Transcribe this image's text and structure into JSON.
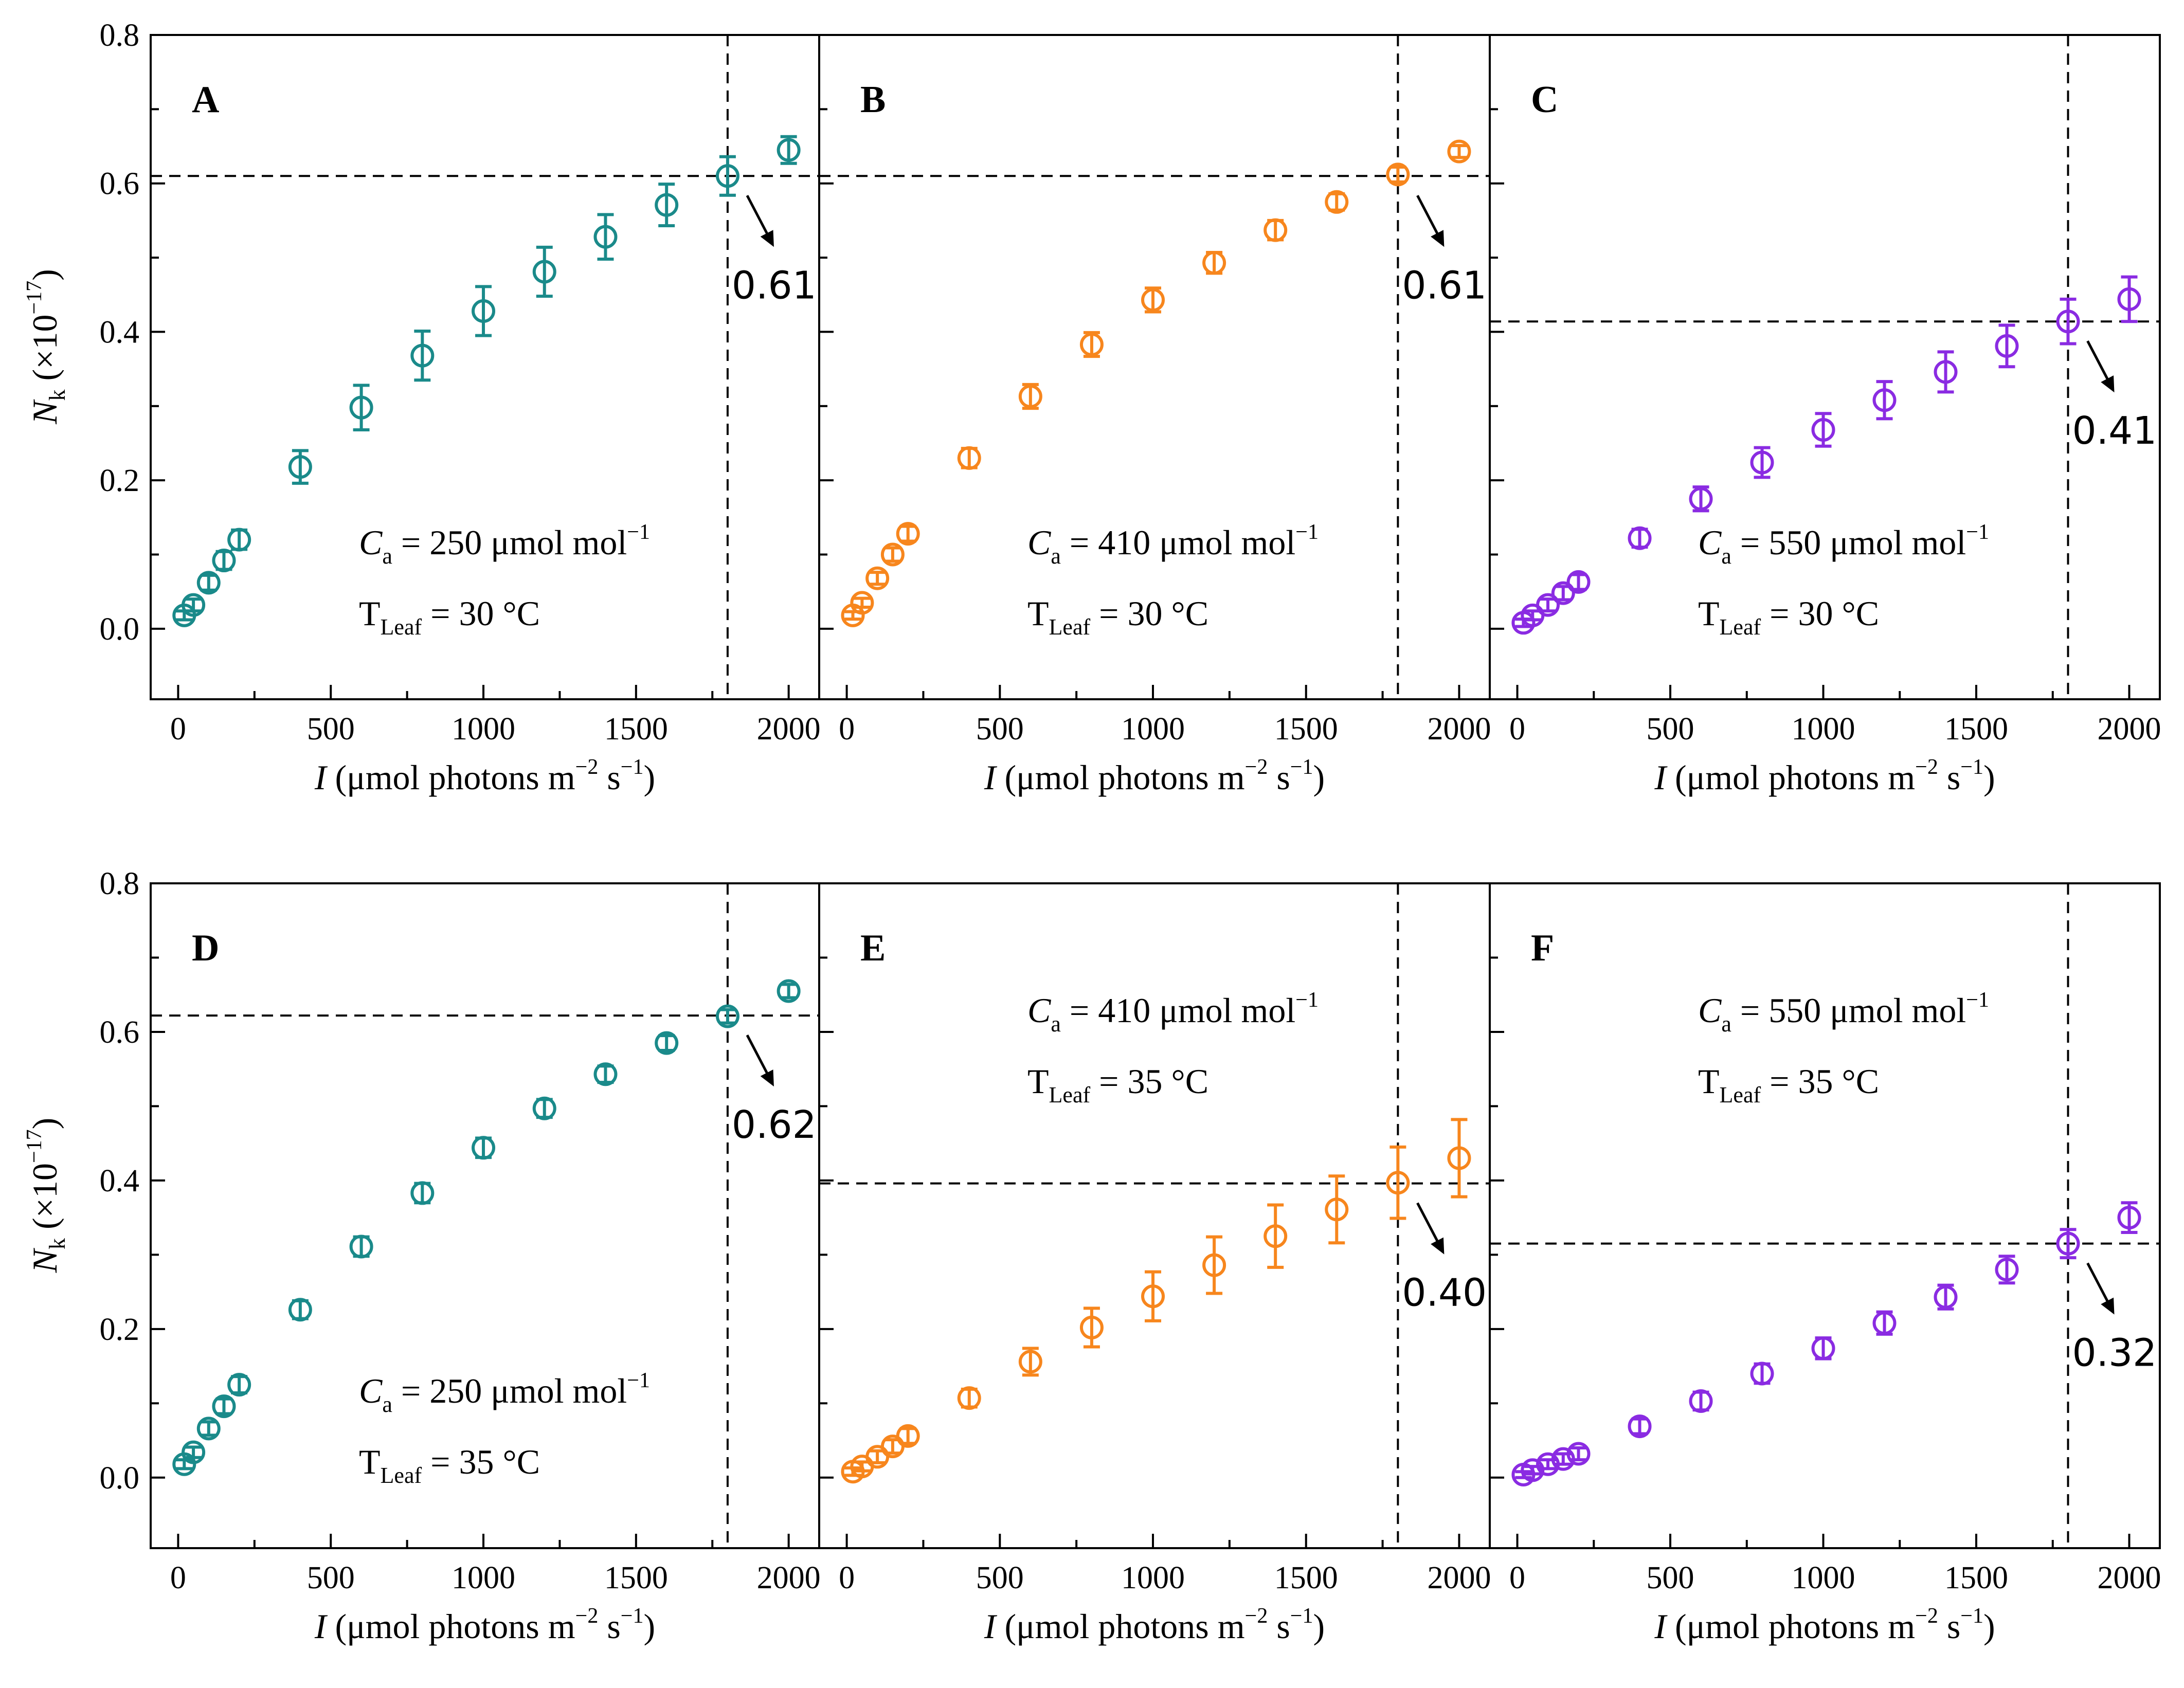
{
  "chart_data": {
    "type": "scatter",
    "xlabel": {
      "italic": "I",
      "text": " (μmol photons m",
      "sup1": "−2",
      "mid": " s",
      "sup2": "−1",
      "end": ")"
    },
    "ylabel": {
      "italic": "N",
      "sub": "k",
      "text": " (×10",
      "sup": "−17",
      "end": ")"
    },
    "x_ticks": [
      0,
      500,
      1000,
      1500,
      2000
    ],
    "y_ticks": [
      0.0,
      0.2,
      0.4,
      0.6,
      0.8
    ],
    "y_tick_labels": [
      "0.0",
      "0.2",
      "0.4",
      "0.6",
      "0.8"
    ],
    "xlim": [
      -90,
      2100
    ],
    "ylim": [
      -0.095,
      0.8
    ],
    "x": [
      20,
      50,
      100,
      150,
      200,
      400,
      600,
      800,
      1000,
      1200,
      1400,
      1600,
      1800,
      2000
    ],
    "marker": "open-circle-with-error-bars",
    "colors": {
      "250": "#1a8a8a",
      "410": "#f7861d",
      "550": "#8a2be2"
    },
    "panels": [
      {
        "letter": "A",
        "ca_value": "250",
        "tleaf_value": "30",
        "series_color": "#1a8a8a",
        "cond_pos": "bottom",
        "y": [
          0.018,
          0.032,
          0.062,
          0.092,
          0.12,
          0.218,
          0.298,
          0.368,
          0.428,
          0.481,
          0.528,
          0.571,
          0.61,
          0.645
        ],
        "err": [
          0.006,
          0.008,
          0.01,
          0.012,
          0.013,
          0.022,
          0.03,
          0.033,
          0.033,
          0.033,
          0.03,
          0.028,
          0.026,
          0.018
        ],
        "ref_x": 1800,
        "ref_y": 0.61,
        "annotation": "0.61"
      },
      {
        "letter": "B",
        "ca_value": "410",
        "tleaf_value": "30",
        "series_color": "#f7861d",
        "cond_pos": "bottom",
        "y": [
          0.018,
          0.035,
          0.068,
          0.1,
          0.128,
          0.23,
          0.313,
          0.383,
          0.443,
          0.493,
          0.537,
          0.575,
          0.612,
          0.643
        ],
        "err": [
          0.005,
          0.006,
          0.008,
          0.009,
          0.01,
          0.013,
          0.016,
          0.016,
          0.016,
          0.014,
          0.013,
          0.011,
          0.01,
          0.008
        ],
        "ref_x": 1800,
        "ref_y": 0.61,
        "annotation": "0.61"
      },
      {
        "letter": "C",
        "ca_value": "550",
        "tleaf_value": "30",
        "series_color": "#8a2be2",
        "cond_pos": "bottom",
        "y": [
          0.008,
          0.018,
          0.032,
          0.048,
          0.063,
          0.122,
          0.175,
          0.224,
          0.268,
          0.308,
          0.346,
          0.381,
          0.414,
          0.444
        ],
        "err": [
          0.005,
          0.006,
          0.008,
          0.009,
          0.01,
          0.012,
          0.016,
          0.02,
          0.022,
          0.025,
          0.027,
          0.028,
          0.03,
          0.03
        ],
        "ref_x": 1800,
        "ref_y": 0.414,
        "annotation": "0.41"
      },
      {
        "letter": "D",
        "ca_value": "250",
        "tleaf_value": "35",
        "series_color": "#1a8a8a",
        "cond_pos": "bottom",
        "y": [
          0.018,
          0.034,
          0.066,
          0.096,
          0.125,
          0.226,
          0.311,
          0.383,
          0.444,
          0.497,
          0.543,
          0.585,
          0.621,
          0.655
        ],
        "err": [
          0.006,
          0.007,
          0.009,
          0.01,
          0.011,
          0.012,
          0.013,
          0.013,
          0.013,
          0.012,
          0.011,
          0.01,
          0.009,
          0.009
        ],
        "ref_x": 1800,
        "ref_y": 0.622,
        "annotation": "0.62"
      },
      {
        "letter": "E",
        "ca_value": "410",
        "tleaf_value": "35",
        "series_color": "#f7861d",
        "cond_pos": "top",
        "y": [
          0.008,
          0.015,
          0.028,
          0.042,
          0.056,
          0.107,
          0.156,
          0.202,
          0.244,
          0.286,
          0.325,
          0.361,
          0.397,
          0.43
        ],
        "err": [
          0.005,
          0.006,
          0.008,
          0.009,
          0.01,
          0.012,
          0.018,
          0.026,
          0.033,
          0.038,
          0.042,
          0.045,
          0.048,
          0.052
        ],
        "ref_x": 1800,
        "ref_y": 0.396,
        "annotation": "0.40"
      },
      {
        "letter": "F",
        "ca_value": "550",
        "tleaf_value": "35",
        "series_color": "#8a2be2",
        "cond_pos": "top",
        "y": [
          0.004,
          0.01,
          0.018,
          0.025,
          0.032,
          0.069,
          0.103,
          0.14,
          0.174,
          0.208,
          0.243,
          0.28,
          0.315,
          0.35
        ],
        "err": [
          0.004,
          0.005,
          0.006,
          0.007,
          0.008,
          0.01,
          0.012,
          0.013,
          0.014,
          0.015,
          0.016,
          0.018,
          0.019,
          0.02
        ],
        "ref_x": 1800,
        "ref_y": 0.315,
        "annotation": "0.32"
      }
    ],
    "condition_text": {
      "ca_symbol": "C",
      "ca_sub": "a",
      "eq": " = ",
      "ca_unit": " μmol mol",
      "ca_unit_sup": "−1",
      "t_symbol": "T",
      "t_sub": "Leaf",
      "t_unit": " °C"
    },
    "grid": false,
    "legend": "none"
  }
}
